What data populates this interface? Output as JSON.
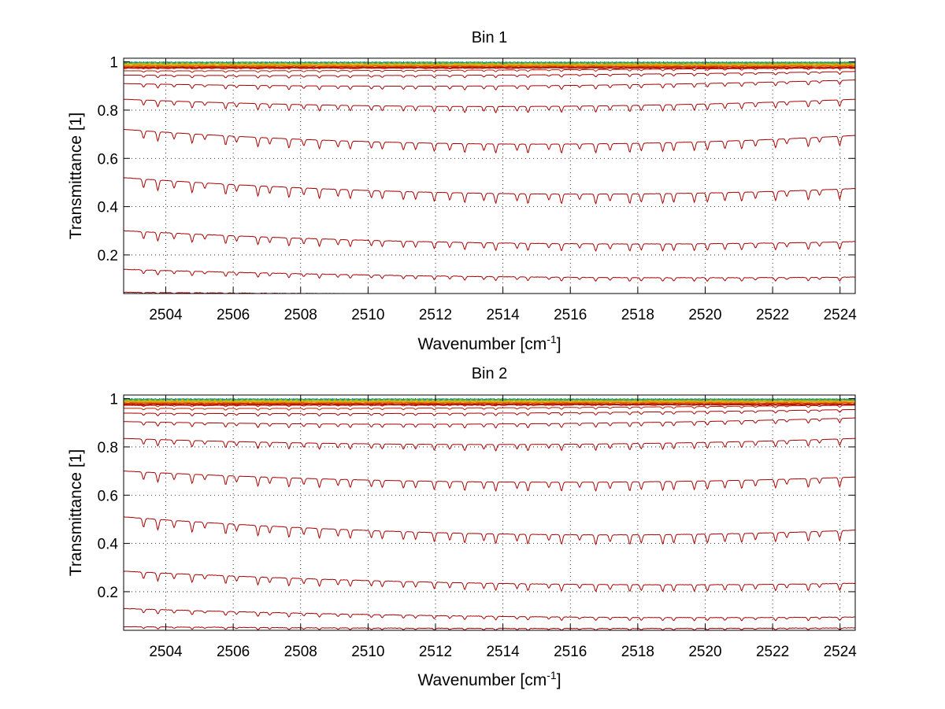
{
  "chart_data": [
    {
      "type": "line",
      "title": "Bin 1",
      "xlabel": "Wavenumber [cm",
      "xlabel_sup": "-1",
      "xlabel_end": "]",
      "ylabel": "Transmittance [1]",
      "xlim": [
        2502.75,
        2524.45
      ],
      "ylim": [
        0.04,
        1.015
      ],
      "xticks": [
        2504,
        2506,
        2508,
        2510,
        2512,
        2514,
        2516,
        2518,
        2520,
        2522,
        2524
      ],
      "yticks": [
        0.2,
        0.4,
        0.6,
        0.8,
        1
      ],
      "ytick_labels": [
        "0.2",
        "0.4",
        "0.6",
        "0.8",
        "1"
      ],
      "grid": true,
      "series_colors": [
        "#0090b0",
        "#30a070",
        "#90c020",
        "#d8c000",
        "#f0a000",
        "#e87800",
        "#d85000",
        "#c83000",
        "#b81800",
        "#aa0000"
      ],
      "level_start": [
        0.045,
        0.14,
        0.3,
        0.52,
        0.72,
        0.845,
        0.91,
        0.945,
        0.963,
        0.975,
        0.983,
        0.989,
        0.993,
        0.996,
        0.998,
        0.999
      ],
      "level_end": [
        0.035,
        0.108,
        0.255,
        0.475,
        0.695,
        0.845,
        0.925,
        0.96,
        0.976,
        0.985,
        0.99,
        0.993,
        0.996,
        0.998,
        0.999,
        1.0
      ],
      "level_mid": [
        0.037,
        0.11,
        0.25,
        0.455,
        0.66,
        0.815,
        0.9,
        0.945,
        0.966,
        0.978,
        0.985,
        0.99,
        0.994,
        0.997,
        0.998,
        0.999
      ]
    },
    {
      "type": "line",
      "title": "Bin 2",
      "xlabel": "Wavenumber [cm",
      "xlabel_sup": "-1",
      "xlabel_end": "]",
      "ylabel": "Transmittance [1]",
      "xlim": [
        2502.75,
        2524.45
      ],
      "ylim": [
        0.04,
        1.015
      ],
      "xticks": [
        2504,
        2506,
        2508,
        2510,
        2512,
        2514,
        2516,
        2518,
        2520,
        2522,
        2524
      ],
      "yticks": [
        0.2,
        0.4,
        0.6,
        0.8,
        1
      ],
      "ytick_labels": [
        "0.2",
        "0.4",
        "0.6",
        "0.8",
        "1"
      ],
      "grid": true,
      "series_colors": [
        "#0090b0",
        "#30a070",
        "#90c020",
        "#d8c000",
        "#f0a000",
        "#e87800",
        "#d85000",
        "#c83000",
        "#b81800",
        "#aa0000"
      ],
      "level_start": [
        0.055,
        0.13,
        0.285,
        0.51,
        0.7,
        0.835,
        0.905,
        0.94,
        0.96,
        0.972,
        0.981,
        0.987,
        0.992,
        0.995,
        0.997,
        0.999
      ],
      "level_end": [
        0.05,
        0.095,
        0.235,
        0.455,
        0.675,
        0.835,
        0.92,
        0.955,
        0.973,
        0.983,
        0.989,
        0.993,
        0.996,
        0.998,
        0.999,
        1.0
      ],
      "level_mid": [
        0.048,
        0.098,
        0.235,
        0.44,
        0.655,
        0.81,
        0.895,
        0.94,
        0.962,
        0.975,
        0.983,
        0.989,
        0.993,
        0.996,
        0.998,
        0.999
      ]
    }
  ]
}
